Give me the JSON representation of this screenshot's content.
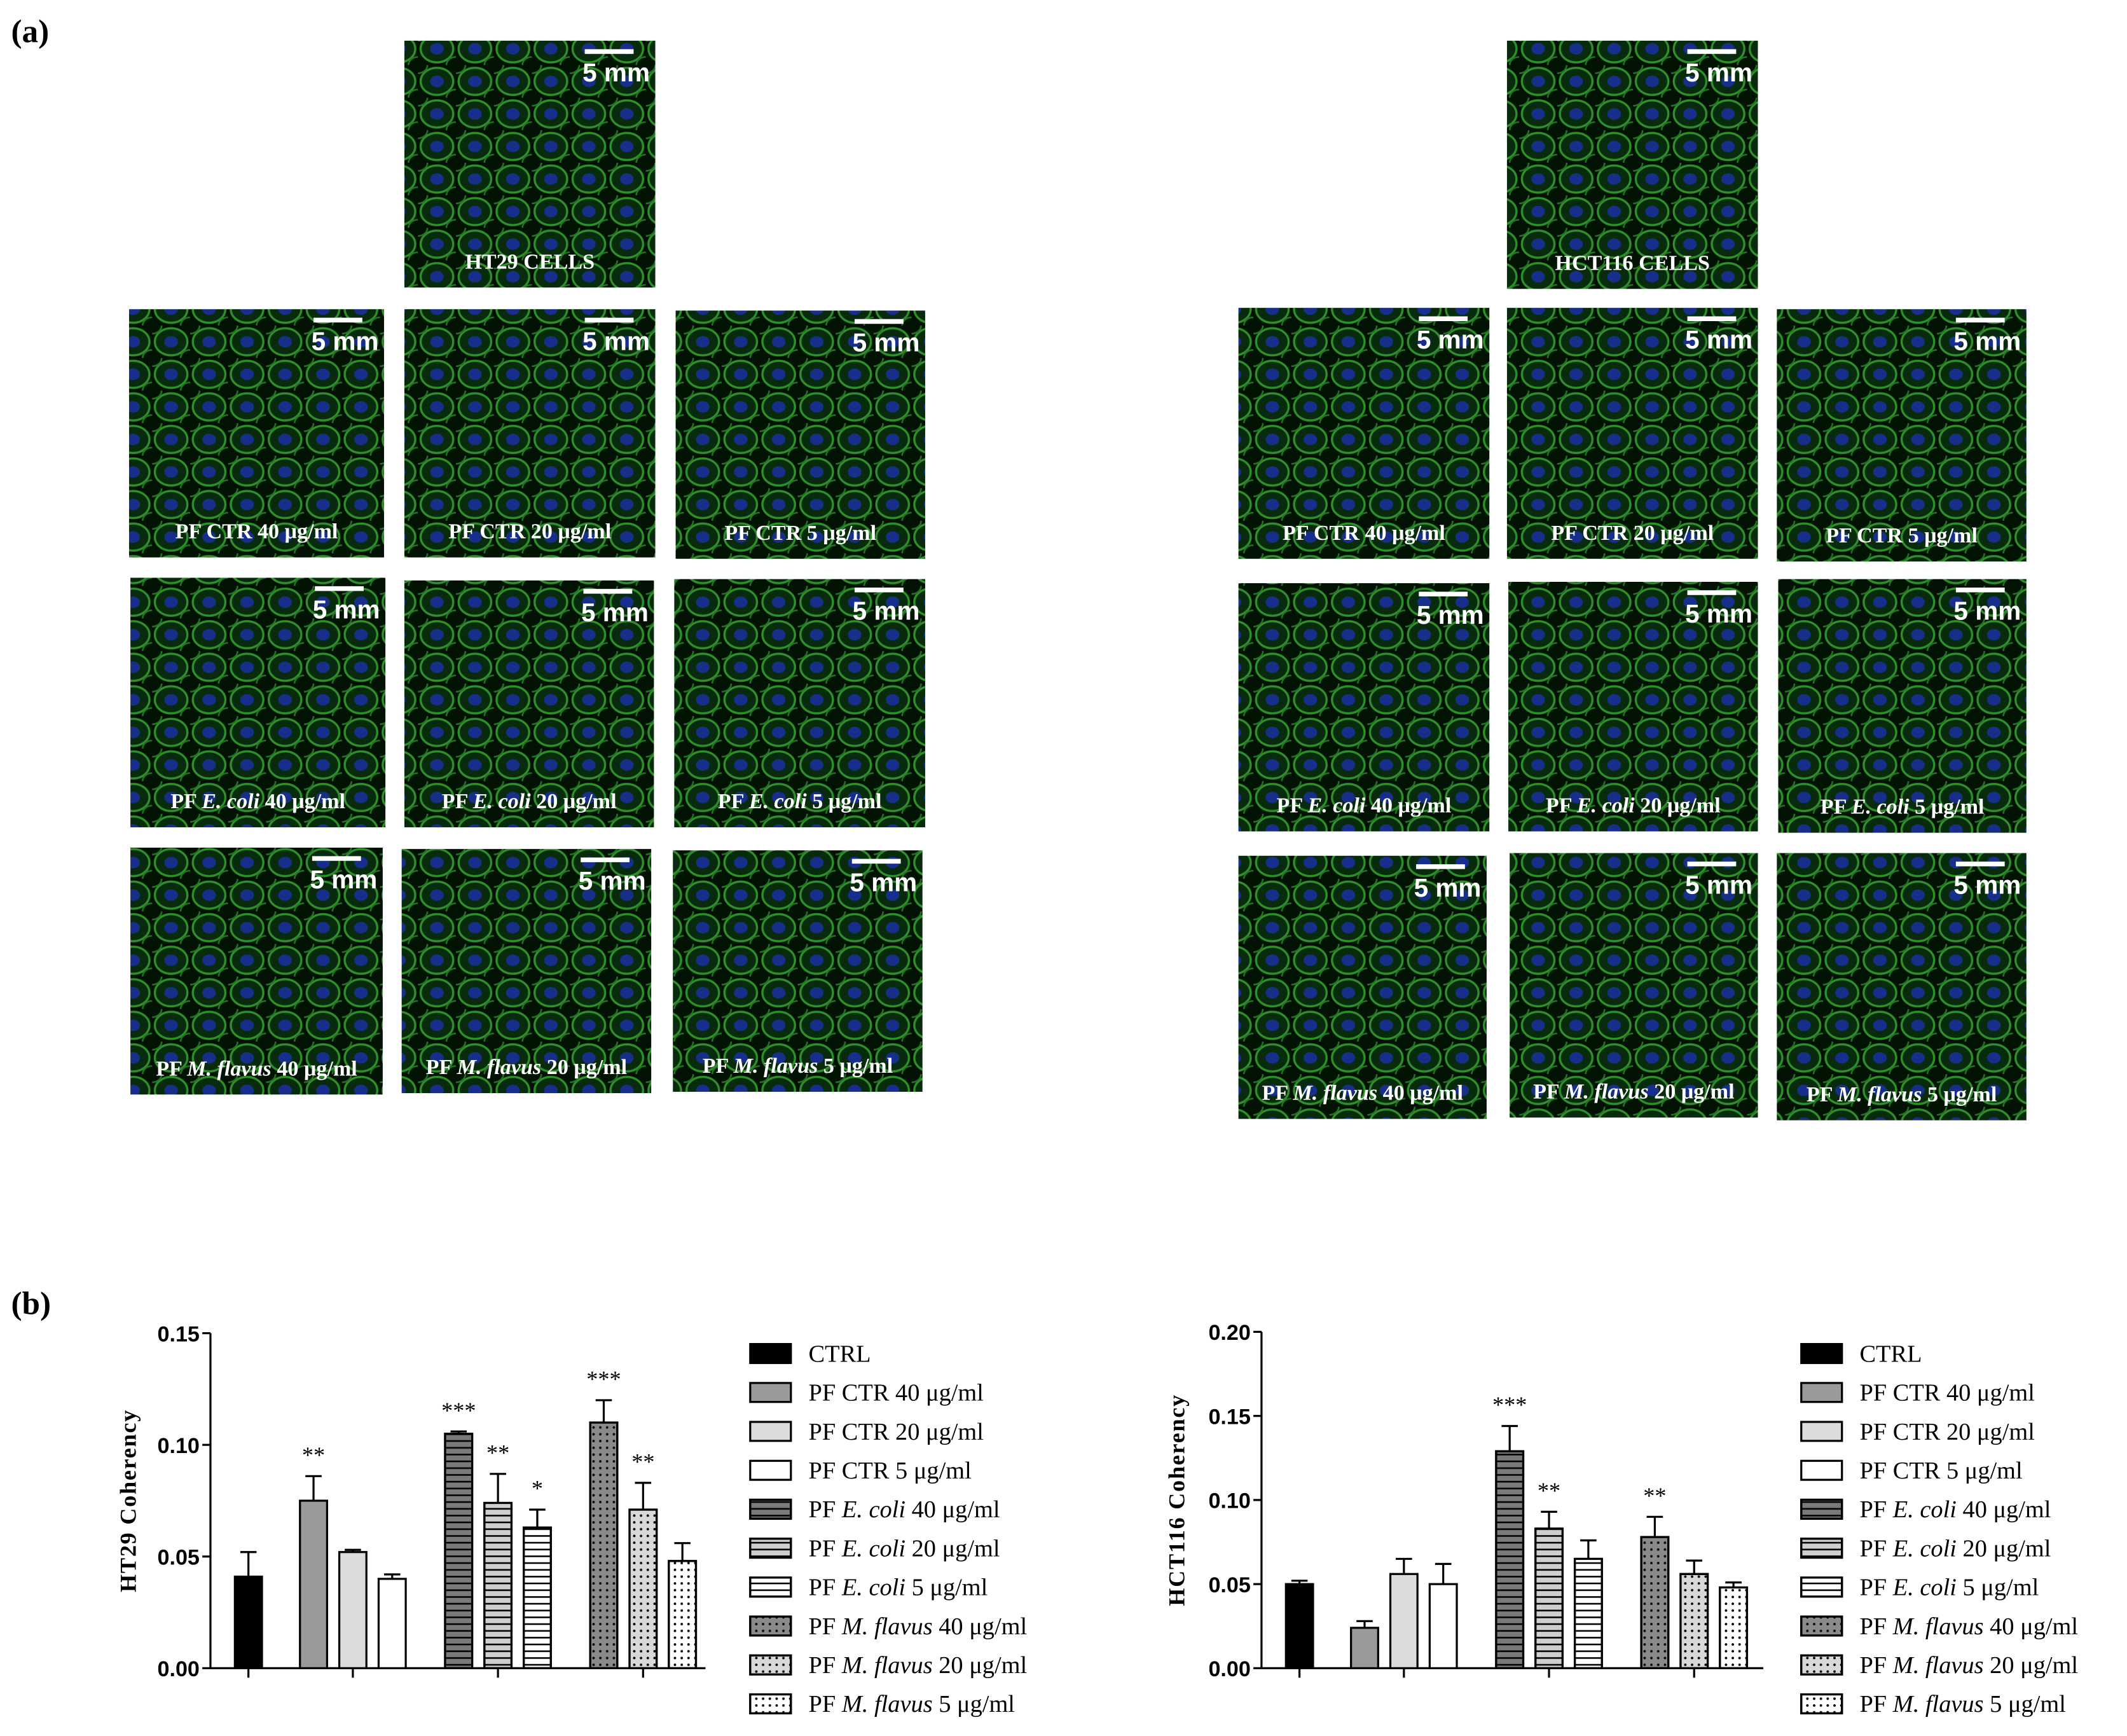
{
  "panel_labels": [
    "(a)",
    "(b)"
  ],
  "micrographs": {
    "scale_label": "5 mm",
    "panels": [
      {
        "caption": "HT29 CELLS"
      },
      {
        "caption": "PF CTR 40 μg/ml"
      },
      {
        "caption": "PF CTR 20 μg/ml"
      },
      {
        "caption": "PF CTR 5 μg/ml"
      },
      {
        "caption": "PF E. coli 40 μg/ml",
        "italic": "E. coli"
      },
      {
        "caption": "PF E. coli 20 μg/ml",
        "italic": "E. coli"
      },
      {
        "caption": "PF E. coli 5 μg/ml",
        "italic": "E. coli"
      },
      {
        "caption": "PF M. flavus 40 μg/ml",
        "italic": "M. flavus"
      },
      {
        "caption": "PF M. flavus 20 μg/ml",
        "italic": "M. flavus"
      },
      {
        "caption": "PF M. flavus 5 μg/ml",
        "italic": "M. flavus"
      },
      {
        "caption": "HCT116 CELLS"
      },
      {
        "caption": "PF CTR 40 μg/ml"
      },
      {
        "caption": "PF CTR 20 μg/ml"
      },
      {
        "caption": "PF CTR 5 μg/ml"
      },
      {
        "caption": "PF E. coli 40 μg/ml",
        "italic": "E. coli"
      },
      {
        "caption": "PF E. coli 20 μg/ml",
        "italic": "E. coli"
      },
      {
        "caption": "PF E. coli 5 μg/ml",
        "italic": "E. coli"
      },
      {
        "caption": "PF M. flavus 40 μg/ml",
        "italic": "M. flavus"
      },
      {
        "caption": "PF M. flavus 20 μg/ml",
        "italic": "M. flavus"
      },
      {
        "caption": "PF M. flavus 5 μg/ml",
        "italic": "M. flavus"
      }
    ]
  },
  "chart_data": [
    {
      "type": "bar",
      "y_label": "HT29 Coherency",
      "ylim": [
        0,
        0.15
      ],
      "yticks": [
        {
          "value": 0,
          "label": "0.00"
        },
        {
          "value": 0.05,
          "label": "0.05"
        },
        {
          "value": 0.1,
          "label": "0.10"
        },
        {
          "value": 0.15,
          "label": "0.15"
        }
      ],
      "series": [
        {
          "name": "CTRL",
          "color": "#000000",
          "pattern": "none",
          "values": [
            0.041
          ],
          "errors": [
            0.011
          ],
          "annotations": [
            null
          ]
        },
        {
          "name": "PF CTR 40 μg/ml",
          "color": "#9a9a9a",
          "pattern": "none",
          "values": [
            0.075
          ],
          "errors": [
            0.011
          ],
          "annotations": [
            "**"
          ]
        },
        {
          "name": "PF CTR 20 μg/ml",
          "color": "#dcdcdc",
          "pattern": "none",
          "values": [
            0.052
          ],
          "errors": [
            0.001
          ],
          "annotations": [
            null
          ]
        },
        {
          "name": "PF CTR 5 μg/ml",
          "color": "#ffffff",
          "pattern": "none",
          "values": [
            0.04
          ],
          "errors": [
            0.002
          ],
          "annotations": [
            null
          ]
        },
        {
          "name": "PF E. coli 40 μg/ml",
          "italic": "E. coli",
          "color": "#7a7a7a",
          "pattern": "hlines",
          "values": [
            0.105
          ],
          "errors": [
            0.001
          ],
          "annotations": [
            "***"
          ]
        },
        {
          "name": "PF E. coli 20 μg/ml",
          "italic": "E. coli",
          "color": "#cfcfcf",
          "pattern": "hlines",
          "values": [
            0.074
          ],
          "errors": [
            0.013
          ],
          "annotations": [
            "**"
          ]
        },
        {
          "name": "PF E. coli 5 μg/ml",
          "italic": "E. coli",
          "color": "#ffffff",
          "pattern": "hlines",
          "values": [
            0.063
          ],
          "errors": [
            0.008
          ],
          "annotations": [
            "*"
          ]
        },
        {
          "name": "PF M. flavus 40 μg/ml",
          "italic": "M. flavus",
          "color": "#8a8a8a",
          "pattern": "dots",
          "values": [
            0.11
          ],
          "errors": [
            0.01
          ],
          "annotations": [
            "***"
          ]
        },
        {
          "name": "PF M. flavus 20 μg/ml",
          "italic": "M. flavus",
          "color": "#d8d8d8",
          "pattern": "dots",
          "values": [
            0.071
          ],
          "errors": [
            0.012
          ],
          "annotations": [
            "**"
          ]
        },
        {
          "name": "PF M. flavus 5 μg/ml",
          "italic": "M. flavus",
          "color": "#ffffff",
          "pattern": "dots",
          "values": [
            0.048
          ],
          "errors": [
            0.008
          ],
          "annotations": [
            null
          ]
        }
      ]
    },
    {
      "type": "bar",
      "y_label": "HCT116 Coherency",
      "ylim": [
        0,
        0.2
      ],
      "yticks": [
        {
          "value": 0,
          "label": "0.00"
        },
        {
          "value": 0.05,
          "label": "0.05"
        },
        {
          "value": 0.1,
          "label": "0.10"
        },
        {
          "value": 0.15,
          "label": "0.15"
        },
        {
          "value": 0.2,
          "label": "0.20"
        }
      ],
      "series": [
        {
          "name": "CTRL",
          "color": "#000000",
          "pattern": "none",
          "values": [
            0.05
          ],
          "errors": [
            0.002
          ],
          "annotations": [
            null
          ]
        },
        {
          "name": "PF CTR 40 μg/ml",
          "color": "#9a9a9a",
          "pattern": "none",
          "values": [
            0.024
          ],
          "errors": [
            0.004
          ],
          "annotations": [
            null
          ]
        },
        {
          "name": "PF CTR 20 μg/ml",
          "color": "#dcdcdc",
          "pattern": "none",
          "values": [
            0.056
          ],
          "errors": [
            0.009
          ],
          "annotations": [
            null
          ]
        },
        {
          "name": "PF CTR 5 μg/ml",
          "color": "#ffffff",
          "pattern": "none",
          "values": [
            0.05
          ],
          "errors": [
            0.012
          ],
          "annotations": [
            null
          ]
        },
        {
          "name": "PF E. coli 40 μg/ml",
          "italic": "E. coli",
          "color": "#7a7a7a",
          "pattern": "hlines",
          "values": [
            0.129
          ],
          "errors": [
            0.015
          ],
          "annotations": [
            "***"
          ]
        },
        {
          "name": "PF E. coli 20 μg/ml",
          "italic": "E. coli",
          "color": "#cfcfcf",
          "pattern": "hlines",
          "values": [
            0.083
          ],
          "errors": [
            0.01
          ],
          "annotations": [
            "**"
          ]
        },
        {
          "name": "PF E. coli 5 μg/ml",
          "italic": "E. coli",
          "color": "#ffffff",
          "pattern": "hlines",
          "values": [
            0.065
          ],
          "errors": [
            0.011
          ],
          "annotations": [
            null
          ]
        },
        {
          "name": "PF M. flavus 40 μg/ml",
          "italic": "M. flavus",
          "color": "#8a8a8a",
          "pattern": "dots",
          "values": [
            0.078
          ],
          "errors": [
            0.012
          ],
          "annotations": [
            "**"
          ]
        },
        {
          "name": "PF M. flavus 20 μg/ml",
          "italic": "M. flavus",
          "color": "#d8d8d8",
          "pattern": "dots",
          "values": [
            0.056
          ],
          "errors": [
            0.008
          ],
          "annotations": [
            null
          ]
        },
        {
          "name": "PF M. flavus 5 μg/ml",
          "italic": "M. flavus",
          "color": "#ffffff",
          "pattern": "dots",
          "values": [
            0.048
          ],
          "errors": [
            0.003
          ],
          "annotations": [
            null
          ]
        }
      ]
    }
  ]
}
